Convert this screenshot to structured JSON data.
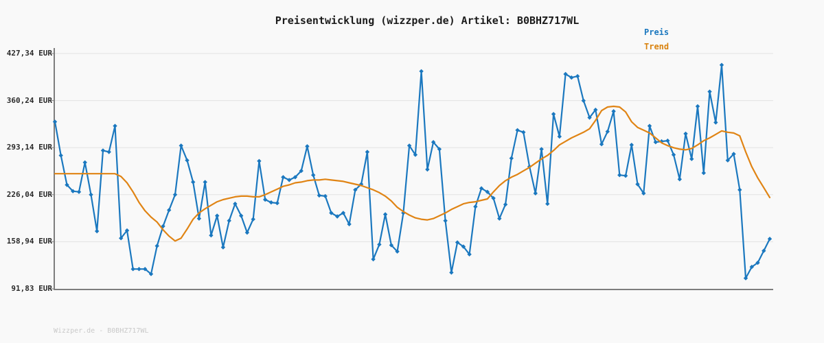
{
  "header": {
    "title": "Preisentwicklung (wizzper.de) Artikel: B0BHZ717WL"
  },
  "legend": {
    "items": [
      {
        "label": "Preis",
        "color": "#1b78bf"
      },
      {
        "label": "Trend",
        "color": "#d9820e"
      }
    ]
  },
  "watermark": {
    "text": "Wizzper.de - B0BHZ717WL"
  },
  "colors": {
    "background": "#f9f9f9",
    "price_line": "#1b78bf",
    "trend_line": "#e08414",
    "axis": "#7d7d7d",
    "grid": "#e2e2e2",
    "title_text": "#1c1c1c",
    "tick_text": "#2a2a2a",
    "watermark_text": "#c9c9c9"
  },
  "chart_data": {
    "type": "line",
    "title": "Preisentwicklung (wizzper.de) Artikel: B0BHZ717WL",
    "xlabel": "",
    "ylabel": "",
    "unit": "EUR",
    "grid": true,
    "legend_position": "top-right",
    "x_tick_labels": [],
    "ylim": [
      91.83,
      427.34
    ],
    "y_ticks": [
      {
        "value": 427.34,
        "label": "427,34 EUR"
      },
      {
        "value": 360.24,
        "label": "360,24 EUR"
      },
      {
        "value": 293.14,
        "label": "293,14 EUR"
      },
      {
        "value": 226.04,
        "label": "226,04 EUR"
      },
      {
        "value": 158.94,
        "label": "158,94 EUR"
      },
      {
        "value": 91.83,
        "label": "91,83 EUR"
      }
    ],
    "series": [
      {
        "name": "Preis",
        "color": "#1b78bf",
        "markers": "diamond",
        "values": [
          330,
          282,
          240,
          231,
          230,
          272,
          226,
          174,
          289,
          287,
          324,
          164,
          175,
          120,
          120,
          120,
          113,
          153,
          181,
          204,
          226,
          296,
          275,
          244,
          192,
          244,
          168,
          196,
          151,
          189,
          213,
          196,
          172,
          191,
          274,
          219,
          215,
          214,
          251,
          247,
          251,
          260,
          295,
          254,
          225,
          224,
          200,
          195,
          200,
          184,
          233,
          241,
          287,
          134,
          155,
          198,
          154,
          145,
          200,
          296,
          283,
          402,
          262,
          301,
          291,
          189,
          115,
          158,
          152,
          141,
          209,
          235,
          230,
          221,
          192,
          212,
          278,
          318,
          315,
          266,
          228,
          291,
          213,
          341,
          309,
          398,
          393,
          395,
          360,
          336,
          347,
          298,
          316,
          345,
          254,
          253,
          297,
          241,
          228,
          324,
          301,
          302,
          303,
          283,
          248,
          313,
          277,
          352,
          257,
          373,
          329,
          411,
          275,
          284,
          233,
          107,
          123,
          129,
          146,
          163
        ]
      },
      {
        "name": "Trend",
        "color": "#e08414",
        "markers": "none",
        "values": [
          256,
          256,
          256,
          256,
          256,
          256,
          256,
          256,
          256,
          256,
          256,
          252,
          243,
          230,
          215,
          203,
          194,
          187,
          176,
          167,
          160,
          164,
          177,
          191,
          200,
          206,
          211,
          216,
          219,
          221,
          223,
          224,
          224,
          223,
          223,
          226,
          230,
          234,
          238,
          240,
          243,
          244,
          246,
          247,
          247,
          248,
          247,
          246,
          245,
          243,
          241,
          239,
          236,
          233,
          229,
          224,
          217,
          208,
          202,
          197,
          193,
          191,
          190,
          192,
          196,
          200,
          205,
          209,
          213,
          215,
          216,
          218,
          220,
          230,
          239,
          246,
          251,
          255,
          260,
          265,
          271,
          277,
          282,
          289,
          297,
          302,
          307,
          311,
          315,
          320,
          332,
          346,
          351,
          352,
          351,
          344,
          330,
          322,
          318,
          314,
          307,
          300,
          296,
          293,
          291,
          290,
          292,
          297,
          303,
          307,
          312,
          317,
          315,
          314,
          310,
          287,
          266,
          250,
          236,
          222
        ]
      }
    ]
  }
}
